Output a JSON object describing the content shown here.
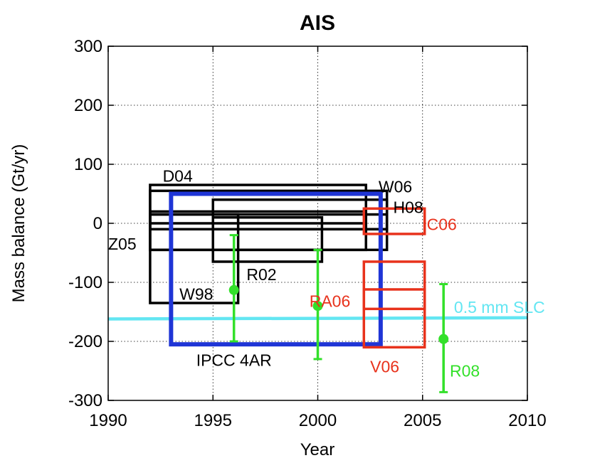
{
  "chart_data": {
    "type": "box",
    "title": "AIS",
    "xlabel": "Year",
    "ylabel": "Mass balance (Gt/yr)",
    "xlim": [
      1990,
      2010
    ],
    "ylim": [
      -300,
      300
    ],
    "x_ticks": [
      1990,
      1995,
      2000,
      2005,
      2010
    ],
    "y_ticks": [
      -300,
      -200,
      -100,
      0,
      100,
      200,
      300
    ],
    "grid": true,
    "boxes": [
      {
        "name": "D04",
        "x0": 1992,
        "x1": 2002.3,
        "y0": 0,
        "y1": 65,
        "color": "#000000"
      },
      {
        "name": "D04",
        "x0": 1992,
        "x1": 2002.3,
        "y0": -45,
        "y1": 20,
        "color": "#000000"
      },
      {
        "name": "W06",
        "x0": 1992,
        "x1": 2003.3,
        "y0": -10,
        "y1": 55,
        "color": "#000000"
      },
      {
        "name": "W06",
        "x0": 1992,
        "x1": 2003.3,
        "y0": -45,
        "y1": 15,
        "color": "#000000"
      },
      {
        "name": "H08",
        "x0": 1995,
        "x1": 2003.3,
        "y0": -10,
        "y1": 40,
        "color": "#000000"
      },
      {
        "name": "Z05",
        "x0": 1992,
        "x1": 1996.2,
        "y0": -135,
        "y1": 15,
        "color": "#000000"
      },
      {
        "name": "R02",
        "x0": 1995,
        "x1": 2000.2,
        "y0": -65,
        "y1": 10,
        "color": "#000000"
      },
      {
        "name": "IPCC 4AR",
        "x0": 1993,
        "x1": 2003,
        "y0": -205,
        "y1": 50,
        "color": "#1f35d6"
      },
      {
        "name": "C06",
        "x0": 2002.2,
        "x1": 2005.1,
        "y0": -18,
        "y1": 25,
        "color": "#e8321c"
      },
      {
        "name": "V06",
        "x0": 2002.2,
        "x1": 2005.1,
        "y0": -210,
        "y1": -65,
        "color": "#e8321c"
      },
      {
        "name": "V06",
        "x0": 2002.2,
        "x1": 2005.1,
        "y0": -145,
        "y1": -112,
        "color": "#e8321c"
      }
    ],
    "errorbars": [
      {
        "name": "W98",
        "x": 1996,
        "y": -113,
        "ymin": -200,
        "ymax": -20,
        "color": "#33e02a"
      },
      {
        "name": "RA06",
        "x": 2000,
        "y": -140,
        "ymin": -230,
        "ymax": -45,
        "color": "#33e02a"
      },
      {
        "name": "R08",
        "x": 2006,
        "y": -196,
        "ymin": -286,
        "ymax": -103,
        "color": "#33e02a"
      }
    ],
    "reference_line": {
      "label": "0.5 mm SLC",
      "y0": -162,
      "y1": -160,
      "color": "#63e6f2"
    },
    "labels": [
      {
        "text": "D04",
        "x": 1992.6,
        "y": 80,
        "color": "#000000"
      },
      {
        "text": "W06",
        "x": 2002.9,
        "y": 62,
        "color": "#000000"
      },
      {
        "text": "H08",
        "x": 2003.6,
        "y": 27,
        "color": "#000000"
      },
      {
        "text": "C06",
        "x": 2005.2,
        "y": -2,
        "color": "#e8321c"
      },
      {
        "text": "Z05",
        "x": 1990,
        "y": -35,
        "color": "#000000"
      },
      {
        "text": "R02",
        "x": 1996.6,
        "y": -87,
        "color": "#000000"
      },
      {
        "text": "W98",
        "x": 1993.4,
        "y": -120,
        "color": "#000000"
      },
      {
        "text": "RA06",
        "x": 1999.6,
        "y": -132,
        "color": "#e8321c"
      },
      {
        "text": "0.5 mm SLC",
        "x": 2006.5,
        "y": -142,
        "color": "#63e6f2"
      },
      {
        "text": "IPCC 4AR",
        "x": 1994.2,
        "y": -232,
        "color": "#000000"
      },
      {
        "text": "V06",
        "x": 2002.5,
        "y": -243,
        "color": "#e8321c"
      },
      {
        "text": "R08",
        "x": 2006.3,
        "y": -250,
        "color": "#33e02a"
      }
    ]
  }
}
